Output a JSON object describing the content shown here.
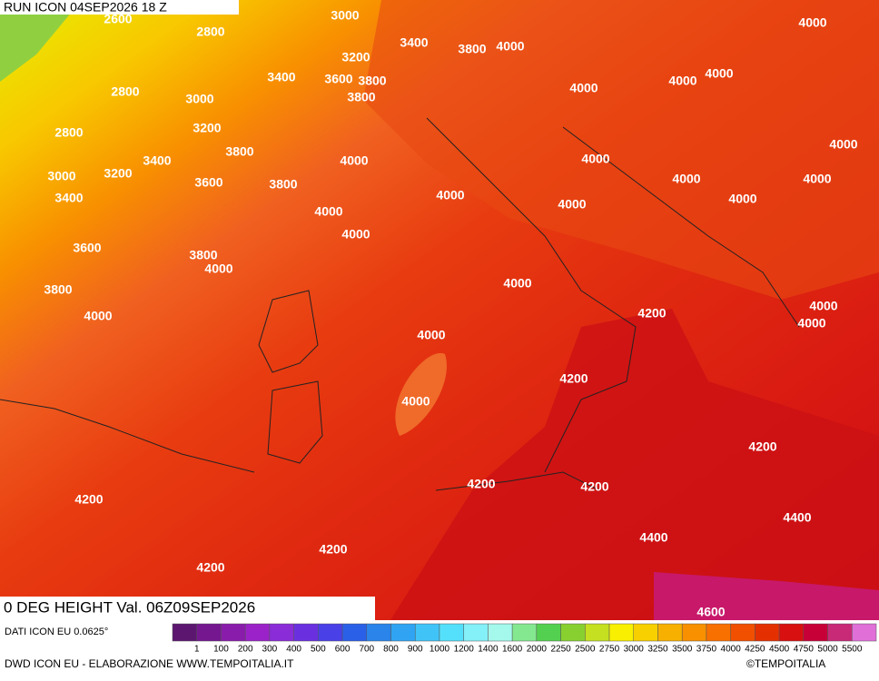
{
  "header": {
    "title": "RUN ICON 04SEP2026 18 Z"
  },
  "map": {
    "contour_labels": [
      2600,
      3000,
      2800,
      3400,
      3200,
      3800,
      4000,
      4000,
      3400,
      3600,
      3800,
      4000,
      4000,
      4000,
      2800,
      3000,
      3800,
      3200,
      2800,
      3800,
      3400,
      4000,
      4000,
      4000,
      3000,
      3200,
      3600,
      3800,
      4000,
      4000,
      4000,
      4000,
      3400,
      4000,
      4000,
      4000,
      3600,
      3800,
      4000,
      4000,
      3800,
      4000,
      4200,
      4000,
      4000,
      4000,
      4200,
      4000,
      4200,
      4200,
      4200,
      4200,
      4400,
      4400,
      4200,
      4200,
      4600
    ]
  },
  "footer": {
    "title": "0 DEG HEIGHT Val. 06Z09SEP2026",
    "source": "DATI ICON EU 0.0625°",
    "credit": "DWD ICON EU - ELABORAZIONE WWW.TEMPOITALIA.IT",
    "copyright": "©TEMPOITALIA"
  },
  "legend": {
    "labels": [
      1,
      100,
      200,
      300,
      400,
      500,
      600,
      700,
      800,
      900,
      1000,
      1200,
      1400,
      1600,
      2000,
      2250,
      2500,
      2750,
      3000,
      3250,
      3500,
      3750,
      4000,
      4250,
      4500,
      4750,
      5000,
      5500
    ],
    "colors": [
      "#5c1670",
      "#751890",
      "#8a1cab",
      "#9a22c8",
      "#8a2cd8",
      "#6a30e0",
      "#4a40e8",
      "#2a60e8",
      "#2a84ea",
      "#30a4f2",
      "#40c4f8",
      "#54e0fa",
      "#84f0f8",
      "#a4f8ec",
      "#84e890",
      "#54d050",
      "#88d030",
      "#c4e020",
      "#f8f000",
      "#f8d000",
      "#f8b000",
      "#f89000",
      "#f87000",
      "#f05000",
      "#e43000",
      "#d81010",
      "#c80038",
      "#c82a78",
      "#e070d8"
    ]
  }
}
